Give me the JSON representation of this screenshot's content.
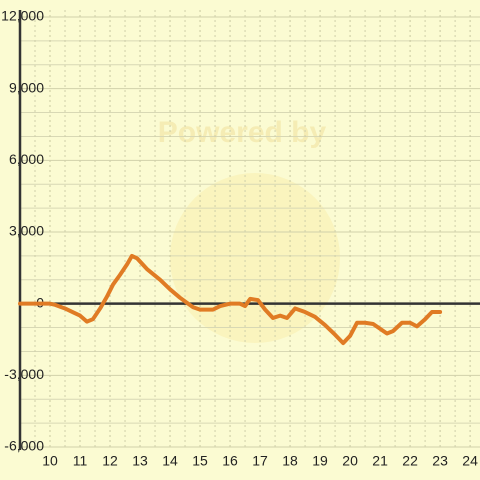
{
  "chart_data": {
    "type": "line",
    "watermark": "Powered by",
    "x": [
      9,
      10,
      10.17,
      10.5,
      10.83,
      11,
      11.23,
      11.43,
      11.67,
      11.9,
      12.1,
      12.33,
      12.57,
      12.73,
      12.9,
      13.23,
      13.67,
      14,
      14.33,
      14.6,
      14.77,
      15,
      15.23,
      15.43,
      15.67,
      16,
      16.33,
      16.5,
      16.67,
      16.93,
      17.17,
      17.43,
      17.67,
      17.9,
      18.17,
      18.5,
      18.83,
      19.17,
      19.5,
      19.77,
      20,
      20.23,
      20.5,
      20.77,
      21,
      21.23,
      21.43,
      21.73,
      22,
      22.23,
      22.5,
      22.73,
      23
    ],
    "series": [
      {
        "color": "#e07b24",
        "values": [
          0,
          0,
          -50,
          -200,
          -400,
          -500,
          -750,
          -650,
          -200,
          300,
          800,
          1200,
          1650,
          2000,
          1900,
          1450,
          1000,
          600,
          250,
          0,
          -150,
          -250,
          -250,
          -250,
          -100,
          0,
          0,
          -100,
          200,
          150,
          -250,
          -600,
          -500,
          -600,
          -200,
          -350,
          -550,
          -900,
          -1300,
          -1650,
          -1350,
          -800,
          -800,
          -850,
          -1050,
          -1250,
          -1150,
          -800,
          -800,
          -950,
          -650,
          -350,
          -350
        ]
      }
    ],
    "xlim": [
      9,
      24.33
    ],
    "ylim": [
      -6000,
      12000
    ],
    "xticks": [
      10,
      11,
      12,
      13,
      14,
      15,
      16,
      17,
      18,
      19,
      20,
      21,
      22,
      23,
      24
    ],
    "yticks": [
      {
        "value": -6000,
        "label": "-6,000"
      },
      {
        "value": -3000,
        "label": "-3,000"
      },
      0,
      {
        "value": 3000,
        "label": "3,000"
      },
      {
        "value": 6000,
        "label": "6,000"
      },
      {
        "value": 9000,
        "label": "9,000"
      },
      {
        "value": 12000,
        "label": "12,000"
      }
    ],
    "y_minor_ticks": [
      -5000,
      -4000,
      -2000,
      -1000,
      1000,
      2000,
      4000,
      5000,
      7000,
      8000,
      10000,
      11000
    ],
    "x_minor_ticks": [
      9.5,
      10.5,
      11.5,
      12.5,
      13.5,
      14.5,
      15.5,
      16.5,
      17.5,
      18.5,
      19.5,
      20.5,
      21.5,
      22.5,
      23.5
    ],
    "grid": true
  }
}
